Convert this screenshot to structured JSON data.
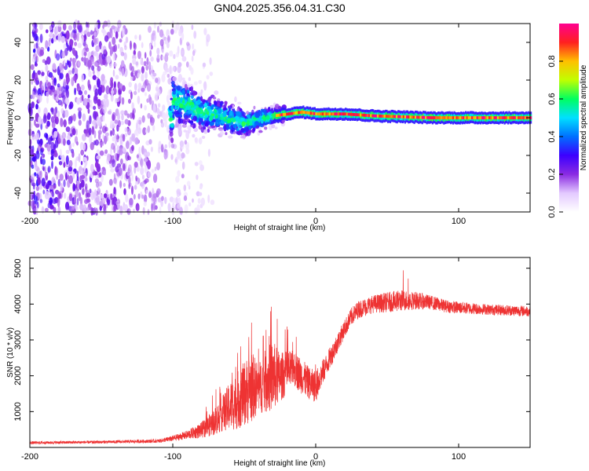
{
  "title": "GN04.2025.356.04.31.C30",
  "chart_data": [
    {
      "type": "heatmap",
      "name": "spectrogram",
      "xlabel": "Height of straight line (km)",
      "ylabel": "Frequency (Hz)",
      "xlim": [
        -200,
        150
      ],
      "ylim": [
        -50,
        50
      ],
      "xticks": [
        -200,
        -100,
        0,
        100
      ],
      "yticks": [
        -40,
        -20,
        0,
        20,
        40
      ],
      "colorbar": {
        "label": "Normalized spectral amplitude",
        "range": [
          0,
          1
        ],
        "ticks": [
          0.0,
          0.2,
          0.4,
          0.6,
          0.8
        ],
        "tick_labels": [
          "0.0",
          "0.2",
          "0.4",
          "0.6",
          "0.8"
        ],
        "colors": [
          "#ffffff",
          "#e3c9ff",
          "#8a2be2",
          "#3c00ff",
          "#0070ff",
          "#00e0ff",
          "#00ff60",
          "#c0ff00",
          "#ffc000",
          "#ff2020",
          "#ff0090"
        ]
      },
      "regions": [
        {
          "name": "noise",
          "x_range": [
            -200,
            -72
          ],
          "freq_range": [
            -50,
            50
          ],
          "level": 0.25
        },
        {
          "name": "transition",
          "x_range": [
            -102,
            -25
          ],
          "freq_center_range": [
            9,
            -5
          ],
          "level": 0.5
        },
        {
          "name": "carrier-ridge",
          "x_range": [
            -25,
            150
          ],
          "freq_center": 1.5,
          "level": 0.95
        }
      ],
      "ridge_center": [
        {
          "x": -100,
          "f": 10
        },
        {
          "x": -90,
          "f": 7
        },
        {
          "x": -80,
          "f": 3
        },
        {
          "x": -70,
          "f": 2
        },
        {
          "x": -60,
          "f": -1
        },
        {
          "x": -50,
          "f": -3
        },
        {
          "x": -40,
          "f": -1
        },
        {
          "x": -30,
          "f": 1
        },
        {
          "x": -20,
          "f": 2
        },
        {
          "x": -10,
          "f": 3
        },
        {
          "x": 0,
          "f": 2
        },
        {
          "x": 20,
          "f": 2
        },
        {
          "x": 40,
          "f": 1
        },
        {
          "x": 60,
          "f": 0.5
        },
        {
          "x": 80,
          "f": 0
        },
        {
          "x": 100,
          "f": 0
        },
        {
          "x": 120,
          "f": 0
        },
        {
          "x": 150,
          "f": 0
        }
      ]
    },
    {
      "type": "line",
      "name": "snr",
      "xlabel": "Height of straight line (km)",
      "ylabel": "SNR (10 * v/v)",
      "xlim": [
        -200,
        150
      ],
      "ylim": [
        0,
        5300
      ],
      "xticks": [
        -200,
        -100,
        0,
        100
      ],
      "yticks": [
        1000,
        2000,
        3000,
        4000,
        5000
      ],
      "color": "#ee3333",
      "series": [
        {
          "name": "SNR envelope",
          "x": [
            -200,
            -150,
            -110,
            -100,
            -90,
            -80,
            -75,
            -70,
            -65,
            -60,
            -55,
            -50,
            -45,
            -40,
            -35,
            -30,
            -25,
            -20,
            -15,
            -10,
            -5,
            0,
            5,
            10,
            15,
            20,
            25,
            30,
            40,
            50,
            60,
            70,
            80,
            90,
            100,
            120,
            150
          ],
          "y": [
            130,
            150,
            180,
            250,
            350,
            480,
            600,
            750,
            950,
            1150,
            1300,
            1500,
            1700,
            1650,
            1850,
            2000,
            1950,
            2100,
            2200,
            2000,
            1800,
            1700,
            2100,
            2500,
            2900,
            3300,
            3650,
            3850,
            4000,
            4050,
            4100,
            4100,
            4050,
            3950,
            3900,
            3850,
            3800
          ],
          "variability": [
            40,
            40,
            50,
            80,
            120,
            220,
            300,
            400,
            500,
            700,
            800,
            900,
            1000,
            700,
            900,
            1000,
            700,
            600,
            500,
            500,
            450,
            450,
            350,
            300,
            280,
            250,
            250,
            250,
            250,
            280,
            300,
            250,
            200,
            180,
            170,
            150,
            150
          ]
        }
      ]
    }
  ]
}
